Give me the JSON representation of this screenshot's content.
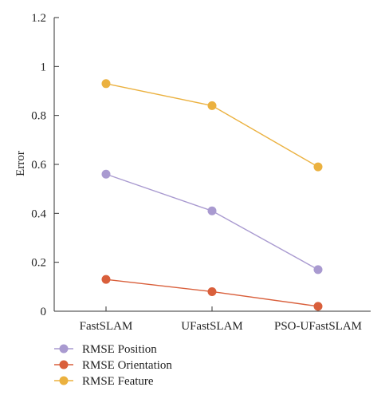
{
  "chart_data": {
    "type": "line",
    "title": "",
    "xlabel": "",
    "ylabel": "Error",
    "categories": [
      "FastSLAM",
      "UFastSLAM",
      "PSO-UFastSLAM"
    ],
    "ylim": [
      0,
      1.2
    ],
    "yticks": [
      0,
      0.2,
      0.4,
      0.6,
      0.8,
      1,
      1.2
    ],
    "ytick_labels": [
      "0",
      "0.2",
      "0.4",
      "0.6",
      "0.8",
      "1",
      "1.2"
    ],
    "grid": false,
    "legend_position": "bottom-left",
    "series": [
      {
        "name": "RMSE Position",
        "color": "#a99ad0",
        "values": [
          0.56,
          0.41,
          0.17
        ]
      },
      {
        "name": "RMSE Orientation",
        "color": "#d95f3b",
        "values": [
          0.13,
          0.08,
          0.02
        ]
      },
      {
        "name": "RMSE Feature",
        "color": "#ebb13f",
        "values": [
          0.93,
          0.84,
          0.59
        ]
      }
    ]
  }
}
